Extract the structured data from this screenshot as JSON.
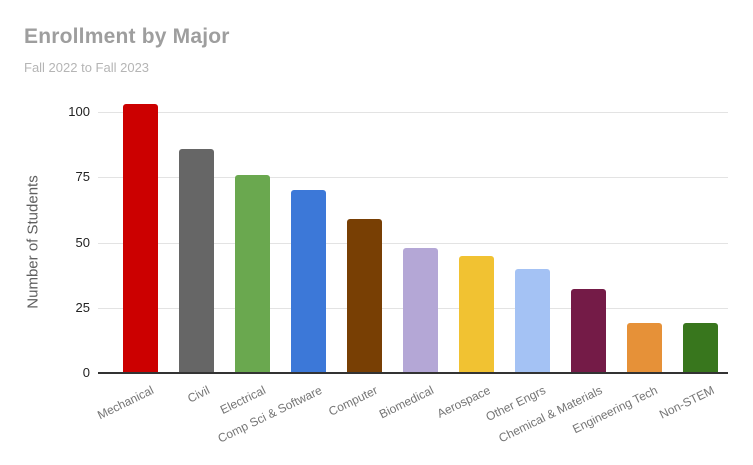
{
  "header": {
    "title": "Enrollment by Major",
    "subtitle": "Fall 2022 to Fall 2023"
  },
  "chart_data": {
    "type": "bar",
    "title": "Enrollment by Major",
    "subtitle": "Fall 2022 to Fall 2023",
    "xlabel": "",
    "ylabel": "Number of Students",
    "categories": [
      "Mechanical",
      "Civil",
      "Electrical",
      "Comp Sci & Software",
      "Computer",
      "Biomedical",
      "Aerospace",
      "Other Engrs",
      "Chemical & Materials",
      "Engineering Tech",
      "Non-STEM"
    ],
    "values": [
      103,
      86,
      76,
      70,
      59,
      48,
      45,
      40,
      32,
      19,
      19
    ],
    "bar_colors": [
      "#cc0000",
      "#666666",
      "#6aa84f",
      "#3c78d8",
      "#783f04",
      "#b4a7d6",
      "#f1c232",
      "#a4c2f4",
      "#741b47",
      "#e69138",
      "#38761d"
    ],
    "ylim": [
      0,
      100
    ],
    "yticks": [
      0,
      25,
      50,
      75,
      100
    ],
    "grid": true,
    "legend": "none",
    "colors": {
      "title": "#9e9e9e",
      "subtitle": "#b5b5b5",
      "axis_baseline": "#333333",
      "gridline": "#e3e3e3",
      "y_tick_text": "#222222",
      "x_tick_text": "#757575",
      "y_axis_title_text": "#5f5f5f",
      "background": "#ffffff"
    }
  }
}
